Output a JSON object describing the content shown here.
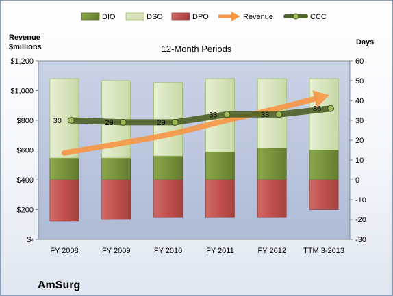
{
  "chart_data": {
    "type": "bar",
    "title": "12-Month Periods",
    "company": "AmSurg",
    "left_axis_label": [
      "Revenue",
      "$millions"
    ],
    "right_axis_label": "Days",
    "categories": [
      "FY 2008",
      "FY 2009",
      "FY 2010",
      "FY 2011",
      "FY 2012",
      "TTM 3-2013"
    ],
    "left_axis": {
      "min": 0,
      "max": 1200,
      "step": 200,
      "tick_labels": [
        "$-",
        "$200",
        "$400",
        "$600",
        "$800",
        "$1,000",
        "$1,200"
      ]
    },
    "right_axis": {
      "min": -30,
      "max": 60,
      "step": 10,
      "tick_labels": [
        "-30",
        "-20",
        "-10",
        "0",
        "10",
        "20",
        "30",
        "40",
        "50",
        "60"
      ]
    },
    "legend": {
      "position": "top",
      "entries": [
        "DIO",
        "DSO",
        "DPO",
        "Revenue",
        "CCC"
      ]
    },
    "series": [
      {
        "name": "DIO",
        "axis": "right",
        "kind": "stacked-bar",
        "color": "#77933c",
        "values": [
          11,
          11,
          12,
          14,
          16,
          15
        ]
      },
      {
        "name": "DSO",
        "axis": "right",
        "kind": "stacked-bar",
        "color": "#d7e4bd",
        "values": [
          40,
          39,
          37,
          37,
          35,
          36
        ]
      },
      {
        "name": "DPO",
        "axis": "right",
        "kind": "negative-bar",
        "color": "#c0504d",
        "values": [
          -21,
          -20,
          -19,
          -19,
          -19,
          -15
        ]
      },
      {
        "name": "Revenue",
        "axis": "left",
        "kind": "arrow-line",
        "color": "#f79646",
        "values": [
          580,
          640,
          700,
          790,
          870,
          960
        ]
      },
      {
        "name": "CCC",
        "axis": "right",
        "kind": "line",
        "color": "#4f6228",
        "values": [
          30,
          29,
          29,
          33,
          33,
          36
        ],
        "data_labels": [
          "30",
          "29",
          "29",
          "33",
          "33",
          "36"
        ]
      }
    ],
    "grid": false
  }
}
